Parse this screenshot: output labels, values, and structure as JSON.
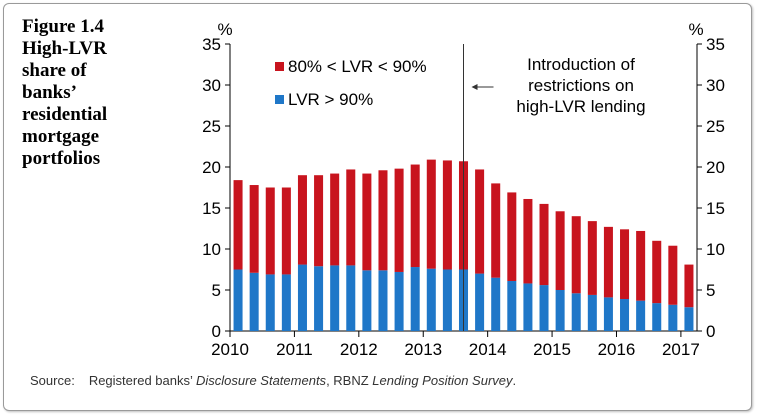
{
  "figure": {
    "title_lines": [
      "Figure 1.4",
      "High-LVR",
      "share of",
      "banks’",
      "residential",
      "mortgage",
      "portfolios"
    ]
  },
  "source": {
    "label": "Source:",
    "parts": [
      {
        "text": "Registered banks’ ",
        "italic": false
      },
      {
        "text": "Disclosure Statements",
        "italic": true
      },
      {
        "text": ", RBNZ ",
        "italic": false
      },
      {
        "text": "Lending Position Survey",
        "italic": true
      },
      {
        "text": ".",
        "italic": false
      }
    ]
  },
  "chart_data": {
    "type": "bar",
    "stacked": true,
    "unit_left": "%",
    "unit_right": "%",
    "ylim": [
      0,
      35
    ],
    "yticks": [
      0,
      5,
      10,
      15,
      20,
      25,
      30,
      35
    ],
    "x_tick_labels": [
      "2010",
      "2011",
      "2012",
      "2013",
      "2014",
      "2015",
      "2016",
      "2017"
    ],
    "series": [
      {
        "name": "LVR > 90%",
        "color": "#1f77c8",
        "values": [
          7.5,
          7.1,
          6.9,
          6.9,
          8.1,
          7.9,
          8.0,
          8.0,
          7.4,
          7.4,
          7.2,
          7.8,
          7.6,
          7.5,
          7.5,
          7.0,
          6.5,
          6.1,
          5.8,
          5.6,
          5.0,
          4.6,
          4.4,
          4.1,
          3.9,
          3.7,
          3.4,
          3.2,
          2.9
        ]
      },
      {
        "name": "80% < LVR < 90%",
        "color": "#c8141e",
        "values": [
          10.9,
          10.7,
          10.6,
          10.6,
          10.9,
          11.1,
          11.2,
          11.7,
          11.8,
          12.2,
          12.6,
          12.5,
          13.3,
          13.3,
          13.2,
          12.7,
          11.5,
          10.8,
          10.3,
          9.9,
          9.6,
          9.4,
          9.0,
          8.6,
          8.5,
          8.5,
          7.6,
          7.2,
          5.2
        ]
      }
    ],
    "legend": [
      {
        "label": "80% < LVR < 90%",
        "color": "#c8141e"
      },
      {
        "label": "LVR > 90%",
        "color": "#1f77c8"
      }
    ],
    "annotation": {
      "lines": [
        "Introduction of",
        "restrictions on",
        "high-LVR lending"
      ],
      "at_bar": 14.5
    }
  }
}
